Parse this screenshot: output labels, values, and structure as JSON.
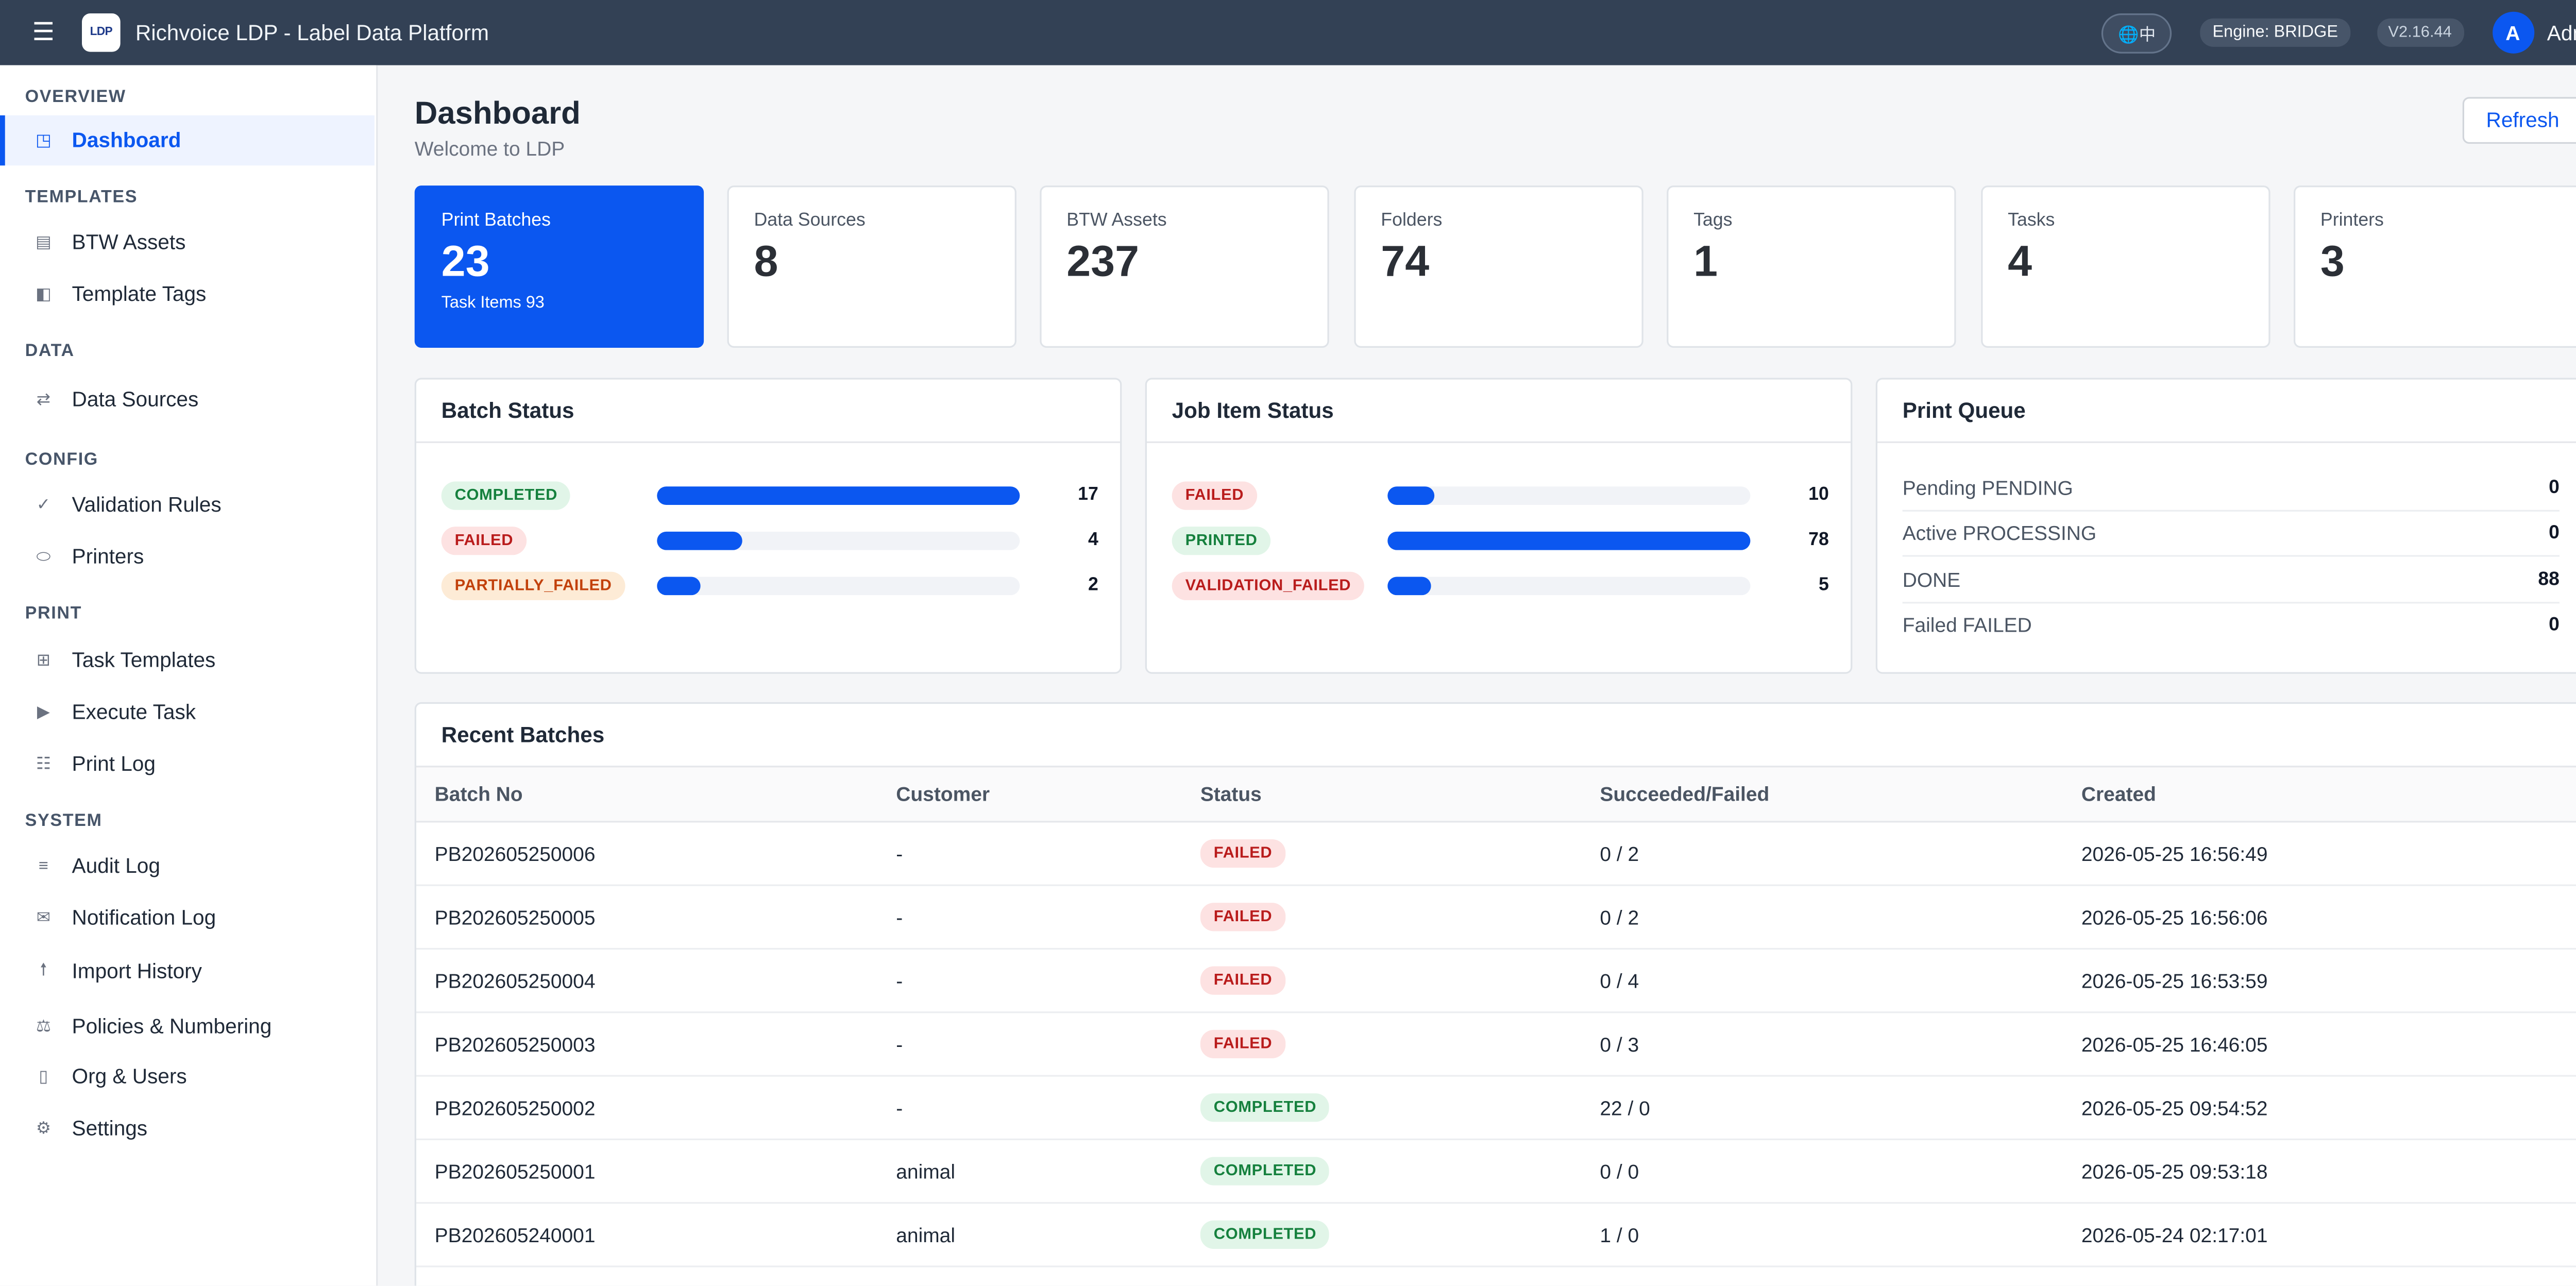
{
  "header": {
    "menu_icon": "hamburger-menu-icon",
    "logo_text": "LDP",
    "title": "Richvoice LDP - Label Data Platform",
    "language_button": "🌐中",
    "engine": "Engine: BRIDGE",
    "version": "V2.16.44",
    "avatar_initial": "A",
    "user_name": "Admin"
  },
  "sidebar": {
    "groups": [
      {
        "title": "OVERVIEW",
        "items": [
          {
            "label": "Dashboard",
            "icon": "dashboard-icon",
            "glyph": "◳",
            "active": true
          }
        ]
      },
      {
        "title": "TEMPLATES",
        "items": [
          {
            "label": "BTW Assets",
            "icon": "file-icon",
            "glyph": "▤"
          },
          {
            "label": "Template Tags",
            "icon": "tag-icon",
            "glyph": "◧"
          }
        ]
      },
      {
        "title": "DATA",
        "items": [
          {
            "label": "Data Sources",
            "icon": "swap-icon",
            "glyph": "⇄"
          }
        ]
      },
      {
        "title": "CONFIG",
        "items": [
          {
            "label": "Validation Rules",
            "icon": "check-icon",
            "glyph": "✓"
          },
          {
            "label": "Printers",
            "icon": "printer-icon",
            "glyph": "⬭"
          }
        ]
      },
      {
        "title": "PRINT",
        "items": [
          {
            "label": "Task Templates",
            "icon": "grid-icon",
            "glyph": "⊞"
          },
          {
            "label": "Execute Task",
            "icon": "play-icon",
            "glyph": "▶"
          },
          {
            "label": "Print Log",
            "icon": "list-icon",
            "glyph": "☷"
          }
        ]
      },
      {
        "title": "SYSTEM",
        "items": [
          {
            "label": "Audit Log",
            "icon": "lines-icon",
            "glyph": "≡"
          },
          {
            "label": "Notification Log",
            "icon": "mail-icon",
            "glyph": "✉"
          },
          {
            "label": "Import History",
            "icon": "upload-icon",
            "glyph": "🠕"
          },
          {
            "label": "Policies & Numbering",
            "icon": "scale-icon",
            "glyph": "⚖"
          },
          {
            "label": "Org & Users",
            "icon": "building-icon",
            "glyph": "▯"
          },
          {
            "label": "Settings",
            "icon": "gear-icon",
            "glyph": "⚙"
          }
        ]
      }
    ]
  },
  "page": {
    "title": "Dashboard",
    "subtitle": "Welcome to LDP",
    "refresh_label": "Refresh"
  },
  "stats": [
    {
      "label": "Print Batches",
      "value": "23",
      "sub": "Task Items 93",
      "primary": true
    },
    {
      "label": "Data Sources",
      "value": "8"
    },
    {
      "label": "BTW Assets",
      "value": "237"
    },
    {
      "label": "Folders",
      "value": "74"
    },
    {
      "label": "Tags",
      "value": "1"
    },
    {
      "label": "Tasks",
      "value": "4"
    },
    {
      "label": "Printers",
      "value": "3"
    }
  ],
  "batch_status": {
    "title": "Batch Status",
    "max": 17,
    "rows": [
      {
        "status": "COMPLETED",
        "tone": "green",
        "count": 17
      },
      {
        "status": "FAILED",
        "tone": "red",
        "count": 4
      },
      {
        "status": "PARTIALLY_FAILED",
        "tone": "orange",
        "count": 2
      }
    ]
  },
  "job_item_status": {
    "title": "Job Item Status",
    "max": 78,
    "rows": [
      {
        "status": "FAILED",
        "tone": "red",
        "count": 10
      },
      {
        "status": "PRINTED",
        "tone": "green",
        "count": 78
      },
      {
        "status": "VALIDATION_FAILED",
        "tone": "red",
        "count": 5
      }
    ]
  },
  "print_queue": {
    "title": "Print Queue",
    "rows": [
      {
        "label": "Pending PENDING",
        "value": "0"
      },
      {
        "label": "Active PROCESSING",
        "value": "0"
      },
      {
        "label": "DONE",
        "value": "88"
      },
      {
        "label": "Failed FAILED",
        "value": "0"
      }
    ]
  },
  "recent_batches": {
    "title": "Recent Batches",
    "columns": [
      "Batch No",
      "Customer",
      "Status",
      "Succeeded/Failed",
      "Created"
    ],
    "rows": [
      {
        "batch_no": "PB202605250006",
        "customer": "-",
        "status": "FAILED",
        "tone": "red",
        "ratio": "0 / 2",
        "created": "2026-05-25 16:56:49"
      },
      {
        "batch_no": "PB202605250005",
        "customer": "-",
        "status": "FAILED",
        "tone": "red",
        "ratio": "0 / 2",
        "created": "2026-05-25 16:56:06"
      },
      {
        "batch_no": "PB202605250004",
        "customer": "-",
        "status": "FAILED",
        "tone": "red",
        "ratio": "0 / 4",
        "created": "2026-05-25 16:53:59"
      },
      {
        "batch_no": "PB202605250003",
        "customer": "-",
        "status": "FAILED",
        "tone": "red",
        "ratio": "0 / 3",
        "created": "2026-05-25 16:46:05"
      },
      {
        "batch_no": "PB202605250002",
        "customer": "-",
        "status": "COMPLETED",
        "tone": "green",
        "ratio": "22 / 0",
        "created": "2026-05-25 09:54:52"
      },
      {
        "batch_no": "PB202605250001",
        "customer": "animal",
        "status": "COMPLETED",
        "tone": "green",
        "ratio": "0 / 0",
        "created": "2026-05-25 09:53:18"
      },
      {
        "batch_no": "PB202605240001",
        "customer": "animal",
        "status": "COMPLETED",
        "tone": "green",
        "ratio": "1 / 0",
        "created": "2026-05-24 02:17:01"
      }
    ]
  },
  "colors": {
    "topbar": "#334155",
    "accent": "#0b57f0",
    "green_badge": "#15803d",
    "red_badge": "#b91c1c",
    "orange_badge": "#c2410c"
  }
}
